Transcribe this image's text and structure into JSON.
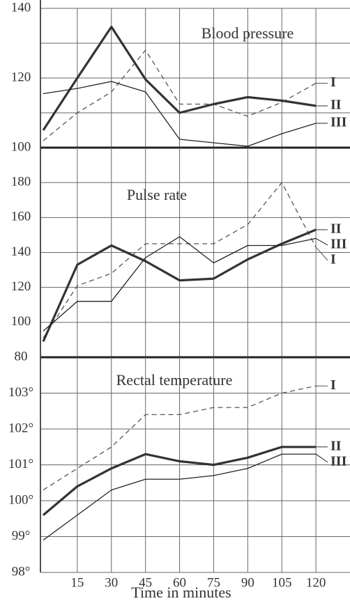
{
  "chart_data": [
    {
      "type": "line",
      "title": "Blood pressure",
      "x": [
        0,
        15,
        30,
        45,
        60,
        75,
        90,
        105,
        120
      ],
      "xlim": [
        0,
        135
      ],
      "xticks": [
        15,
        30,
        45,
        60,
        75,
        90,
        105,
        120
      ],
      "ylim": [
        100,
        140
      ],
      "yticks": [
        100,
        120,
        140
      ],
      "minor_yticks": [
        110,
        130
      ],
      "grid": true,
      "series": [
        {
          "name": "I",
          "color": "#555555",
          "style": "dashed",
          "values": [
            102,
            110,
            116,
            128,
            112.5,
            112.5,
            109,
            113,
            118.5
          ]
        },
        {
          "name": "II",
          "color": "#333333",
          "style": "thick",
          "values": [
            105,
            120,
            134.7,
            119.6,
            110,
            112.5,
            114.5,
            113.5,
            112
          ]
        },
        {
          "name": "III",
          "color": "#222222",
          "style": "thin",
          "values": [
            115.5,
            117,
            119,
            116,
            102.4,
            101.4,
            100.4,
            104,
            107
          ]
        }
      ]
    },
    {
      "type": "line",
      "title": "Pulse rate",
      "x": [
        0,
        15,
        30,
        45,
        60,
        75,
        90,
        105,
        120
      ],
      "xlim": [
        0,
        135
      ],
      "xticks": [
        15,
        30,
        45,
        60,
        75,
        90,
        105,
        120
      ],
      "ylim": [
        80,
        200
      ],
      "yticks": [
        80,
        100,
        120,
        140,
        160,
        180
      ],
      "grid": true,
      "series": [
        {
          "name": "I",
          "color": "#555555",
          "style": "dashed",
          "values": [
            91,
            121,
            128,
            145,
            145,
            145,
            156,
            180,
            143
          ]
        },
        {
          "name": "II",
          "color": "#333333",
          "style": "thick",
          "values": [
            89,
            133,
            144,
            135,
            124,
            125,
            136,
            145,
            153
          ]
        },
        {
          "name": "III",
          "color": "#222222",
          "style": "thin",
          "values": [
            95,
            112,
            112,
            137,
            149,
            134,
            144,
            144,
            148
          ]
        }
      ]
    },
    {
      "type": "line",
      "title": "Rectal temperature",
      "xlabel": "Time in minutes",
      "x": [
        0,
        15,
        30,
        45,
        60,
        75,
        90,
        105,
        120
      ],
      "xlim": [
        0,
        135
      ],
      "xticks": [
        15,
        30,
        45,
        60,
        75,
        90,
        105,
        120
      ],
      "ylim": [
        98,
        104
      ],
      "yticks": [
        {
          "value": 98,
          "label": "98°"
        },
        {
          "value": 99,
          "label": "99°"
        },
        {
          "value": 100,
          "label": "100°"
        },
        {
          "value": 101,
          "label": "101°"
        },
        {
          "value": 102,
          "label": "102°"
        },
        {
          "value": 103,
          "label": "103°"
        }
      ],
      "grid": true,
      "series": [
        {
          "name": "I",
          "color": "#555555",
          "style": "dashed",
          "values": [
            100.3,
            100.9,
            101.5,
            102.4,
            102.4,
            102.6,
            102.6,
            103.0,
            103.2
          ]
        },
        {
          "name": "II",
          "color": "#333333",
          "style": "thick",
          "values": [
            99.6,
            100.4,
            100.9,
            101.3,
            101.1,
            101.0,
            101.2,
            101.5,
            101.5
          ]
        },
        {
          "name": "III",
          "color": "#222222",
          "style": "thin",
          "values": [
            98.9,
            99.6,
            100.3,
            100.6,
            100.6,
            100.7,
            100.9,
            101.3,
            101.3
          ]
        }
      ]
    }
  ]
}
